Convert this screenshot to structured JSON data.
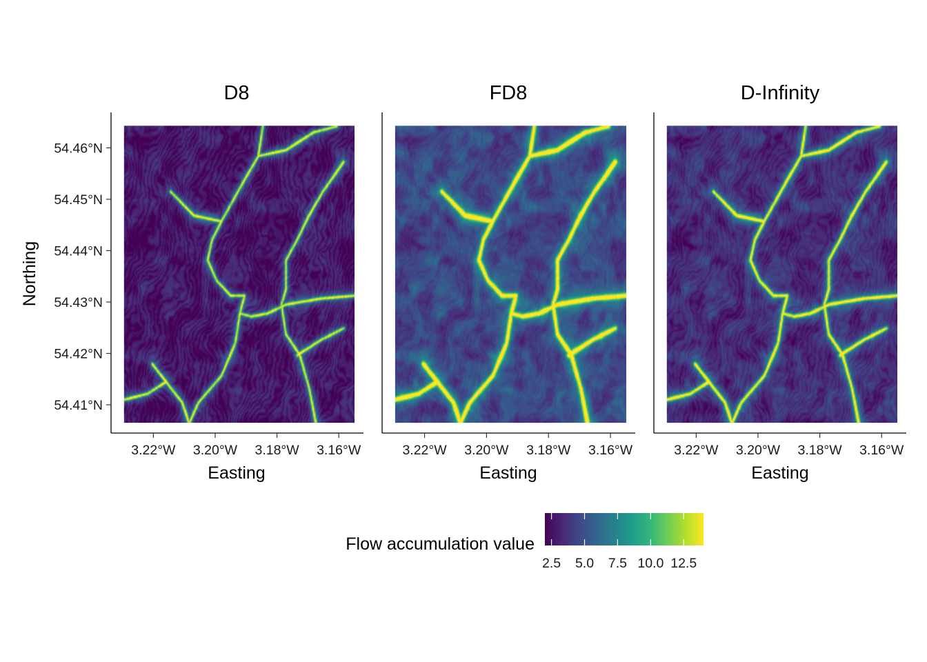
{
  "chart_data": {
    "type": "heatmap",
    "panels": [
      {
        "title": "D8",
        "variant": "d8"
      },
      {
        "title": "FD8",
        "variant": "fd8"
      },
      {
        "title": "D-Infinity",
        "variant": "dinf"
      }
    ],
    "xlabel": "Easting",
    "ylabel": "Northing",
    "x_ticks": [
      {
        "value": -3.22,
        "label": "3.22°W"
      },
      {
        "value": -3.2,
        "label": "3.20°W"
      },
      {
        "value": -3.18,
        "label": "3.18°W"
      },
      {
        "value": -3.16,
        "label": "3.16°W"
      }
    ],
    "y_ticks": [
      {
        "value": 54.41,
        "label": "54.41°N"
      },
      {
        "value": 54.42,
        "label": "54.42°N"
      },
      {
        "value": 54.43,
        "label": "54.43°N"
      },
      {
        "value": 54.44,
        "label": "54.44°N"
      },
      {
        "value": 54.45,
        "label": "54.45°N"
      },
      {
        "value": 54.46,
        "label": "54.46°N"
      }
    ],
    "xlim": [
      -3.2337,
      -3.152
    ],
    "ylim": [
      54.4045,
      54.4669
    ],
    "raster_extent": {
      "x": [
        -3.2295,
        -3.1549
      ],
      "y": [
        54.4065,
        54.4643
      ]
    },
    "legend": {
      "title": "Flow accumulation value",
      "position": "bottom",
      "range": [
        2.0,
        14.0
      ],
      "ticks": [
        {
          "value": 2.5,
          "label": "2.5"
        },
        {
          "value": 5.0,
          "label": "5.0"
        },
        {
          "value": 7.5,
          "label": "7.5"
        },
        {
          "value": 10.0,
          "label": "10.0"
        },
        {
          "value": 12.5,
          "label": "12.5"
        }
      ],
      "colormap": "viridis",
      "colors": [
        "#440154",
        "#482878",
        "#3e4a89",
        "#31688e",
        "#26828e",
        "#1f9e89",
        "#35b779",
        "#6ece58",
        "#b5de2b",
        "#fde725"
      ]
    },
    "grid": false
  }
}
